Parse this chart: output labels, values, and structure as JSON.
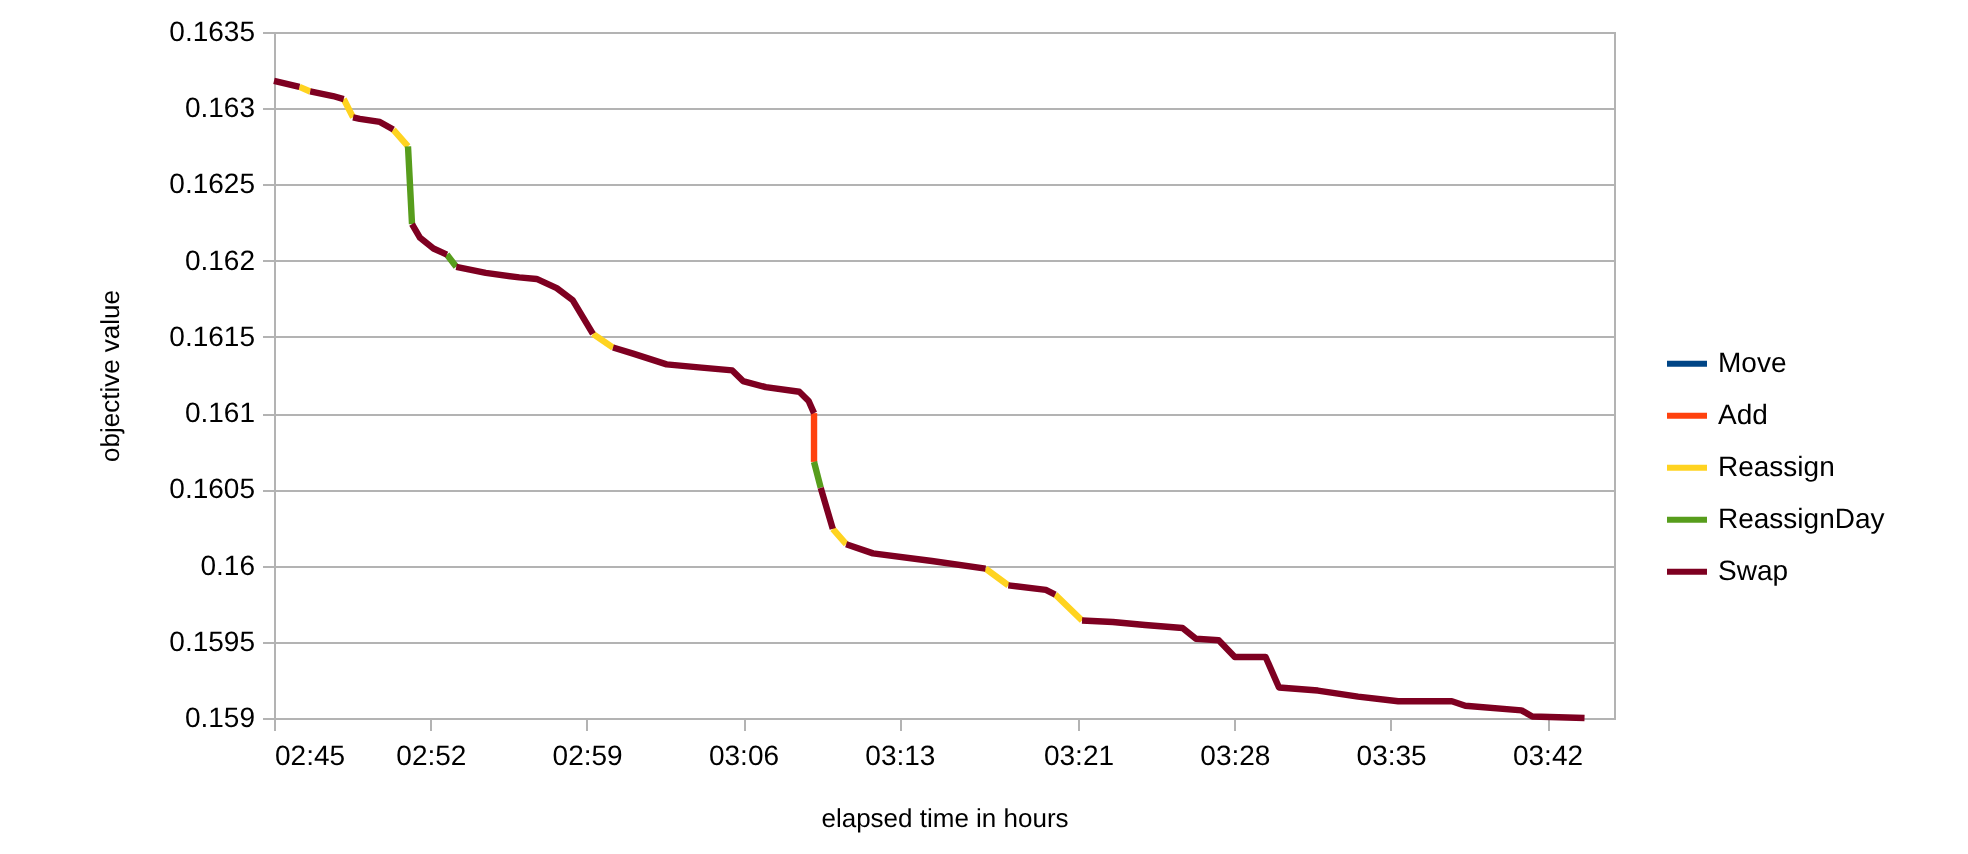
{
  "chart_data": {
    "type": "line",
    "xlabel": "elapsed time in hours",
    "ylabel": "objective value",
    "xlim": [
      2.75,
      3.75
    ],
    "ylim": [
      0.159,
      0.1635
    ],
    "xticks": [
      {
        "value": 2.75,
        "label": "02:45"
      },
      {
        "value": 2.8667,
        "label": "02:52"
      },
      {
        "value": 2.9833,
        "label": "02:59"
      },
      {
        "value": 3.1,
        "label": "03:06"
      },
      {
        "value": 3.2167,
        "label": "03:13"
      },
      {
        "value": 3.35,
        "label": "03:21"
      },
      {
        "value": 3.4667,
        "label": "03:28"
      },
      {
        "value": 3.5833,
        "label": "03:35"
      },
      {
        "value": 3.7,
        "label": "03:42"
      }
    ],
    "yticks": [
      0.159,
      0.1595,
      0.16,
      0.1605,
      0.161,
      0.1615,
      0.162,
      0.1625,
      0.163,
      0.1635
    ],
    "grid": "y",
    "legend": "right",
    "series": [
      {
        "name": "Move",
        "color": "#004586"
      },
      {
        "name": "Add",
        "color": "#ff420e",
        "x": [
          3.153,
          3.153
        ],
        "values": [
          0.161,
          0.16068
        ]
      },
      {
        "name": "Reassign",
        "color": "#ffd320",
        "x": [
          2.769,
          2.777,
          null,
          2.802,
          2.809,
          null,
          2.839,
          2.85,
          null,
          2.988,
          3.003,
          null,
          3.167,
          3.177,
          null,
          3.281,
          3.298,
          null,
          3.333,
          3.353
        ],
        "values": [
          0.16314,
          0.16311,
          null,
          0.16306,
          0.16294,
          null,
          0.16286,
          0.16275,
          null,
          0.16152,
          0.16143,
          null,
          0.16024,
          0.16014,
          null,
          0.15998,
          0.15987,
          null,
          0.15981,
          0.15964
        ]
      },
      {
        "name": "ReassignDay",
        "color": "#579d1c",
        "x": [
          2.85,
          2.853,
          null,
          2.879,
          2.886,
          null,
          3.153,
          3.158
        ],
        "values": [
          0.16275,
          0.16224,
          null,
          0.16204,
          0.16196,
          null,
          0.16068,
          0.16051
        ]
      },
      {
        "name": "Swap",
        "color": "#7e0021",
        "x": [
          2.75,
          2.769,
          null,
          2.777,
          2.794,
          2.802,
          null,
          2.809,
          2.814,
          2.829,
          2.839,
          null,
          2.853,
          2.859,
          2.869,
          2.879,
          null,
          2.886,
          2.908,
          2.933,
          2.946,
          2.961,
          2.973,
          2.988,
          null,
          3.003,
          3.018,
          3.043,
          3.067,
          3.092,
          3.1,
          3.117,
          3.142,
          3.149,
          3.153,
          null,
          3.158,
          3.167,
          null,
          3.177,
          3.197,
          3.241,
          3.281,
          null,
          3.298,
          3.326,
          3.333,
          null,
          3.353,
          3.376,
          3.4,
          3.428,
          3.438,
          3.455,
          3.467,
          3.49,
          3.5,
          3.529,
          3.559,
          3.589,
          3.629,
          3.639,
          3.681,
          3.689,
          3.728
        ],
        "values": [
          0.16318,
          0.16314,
          null,
          0.16311,
          0.16308,
          0.16306,
          null,
          0.16294,
          0.16293,
          0.16291,
          0.16286,
          null,
          0.16224,
          0.16215,
          0.16208,
          0.16204,
          null,
          0.16196,
          0.16192,
          0.16189,
          0.16188,
          0.16182,
          0.16174,
          0.16152,
          null,
          0.16143,
          0.16139,
          0.16132,
          0.1613,
          0.16128,
          0.16121,
          0.16117,
          0.16114,
          0.16108,
          0.161,
          null,
          0.16051,
          0.16024,
          null,
          0.16014,
          0.16008,
          0.16003,
          0.15998,
          null,
          0.15987,
          0.15984,
          0.15981,
          null,
          0.15964,
          0.15963,
          0.15961,
          0.15959,
          0.15952,
          0.15951,
          0.1594,
          0.1594,
          0.1592,
          0.15918,
          0.15914,
          0.15911,
          0.15911,
          0.15908,
          0.15905,
          0.15901,
          0.159
        ]
      }
    ]
  }
}
